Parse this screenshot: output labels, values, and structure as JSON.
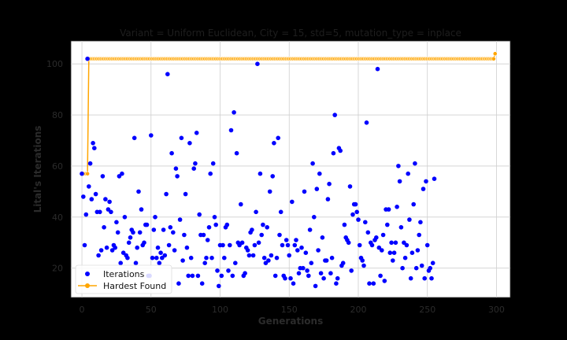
{
  "chart_data": {
    "type": "scatter",
    "title": "Variant = Uniform Euclidean, City = 15, std=5, mutation_type = inplace",
    "xlabel": "Generations",
    "ylabel": "Lital's Iterations",
    "xlim": [
      -8,
      310
    ],
    "ylim": [
      8.5,
      109
    ],
    "xticks": [
      0,
      50,
      100,
      150,
      200,
      250,
      300
    ],
    "yticks": [
      20,
      40,
      60,
      80,
      100
    ],
    "grid": true,
    "legend_position": "lower-left",
    "series": [
      {
        "name": "Iterations",
        "kind": "scatter",
        "color": "#0000ff",
        "y": [
          57,
          48,
          29,
          41,
          102,
          52,
          61,
          47,
          69,
          67,
          49,
          42,
          25,
          42,
          27,
          56,
          36,
          47,
          28,
          43,
          46,
          42,
          27,
          29,
          28,
          38,
          34,
          56,
          22,
          57,
          26,
          40,
          25,
          24,
          30,
          32,
          35,
          34,
          71,
          22,
          28,
          50,
          34,
          43,
          29,
          30,
          37,
          37,
          17,
          17,
          72,
          24,
          35,
          40,
          24,
          28,
          22,
          26,
          24,
          35,
          25,
          49,
          96,
          29,
          36,
          65,
          34,
          27,
          59,
          56,
          14,
          39,
          71,
          23,
          33,
          49,
          28,
          17,
          69,
          24,
          17,
          59,
          61,
          73,
          17,
          41,
          33,
          14,
          33,
          22,
          24,
          31,
          36,
          57,
          24,
          61,
          40,
          37,
          19,
          13,
          29,
          17,
          29,
          24,
          36,
          37,
          19,
          29,
          74,
          17,
          81,
          22,
          65,
          30,
          29,
          45,
          30,
          17,
          18,
          28,
          27,
          25,
          34,
          35,
          25,
          29,
          42,
          100,
          30,
          57,
          33,
          37,
          24,
          22,
          36,
          23,
          50,
          25,
          56,
          69,
          17,
          24,
          71,
          33,
          42,
          29,
          17,
          16,
          31,
          29,
          25,
          16,
          46,
          14,
          29,
          31,
          27,
          18,
          20,
          28,
          20,
          50,
          26,
          19,
          17,
          35,
          22,
          61,
          40,
          13,
          51,
          27,
          57,
          18,
          32,
          16,
          23,
          23,
          47,
          53,
          18,
          24,
          65,
          80,
          14,
          16,
          67,
          66,
          21,
          22,
          37,
          32,
          31,
          30,
          52,
          19,
          41,
          45,
          45,
          42,
          39,
          29,
          24,
          23,
          21,
          38,
          77,
          34,
          14,
          30,
          29,
          14,
          31,
          32,
          98,
          28,
          17,
          27,
          33,
          15,
          43,
          37,
          43,
          26,
          30,
          23,
          26,
          30,
          44,
          60,
          54,
          36,
          20,
          30,
          24,
          29,
          57,
          39,
          16,
          26,
          45,
          61,
          20,
          27,
          33,
          38,
          21,
          51,
          16,
          54,
          29,
          19,
          20,
          16,
          22,
          55
        ]
      },
      {
        "name": "Hardest Found",
        "kind": "line",
        "color": "#ffa500",
        "points": [
          [
            0,
            57
          ],
          [
            1,
            57
          ],
          [
            2,
            57
          ],
          [
            3,
            57
          ],
          [
            4,
            57
          ],
          [
            5,
            102
          ],
          [
            298,
            102
          ],
          [
            299,
            104
          ]
        ]
      }
    ]
  }
}
